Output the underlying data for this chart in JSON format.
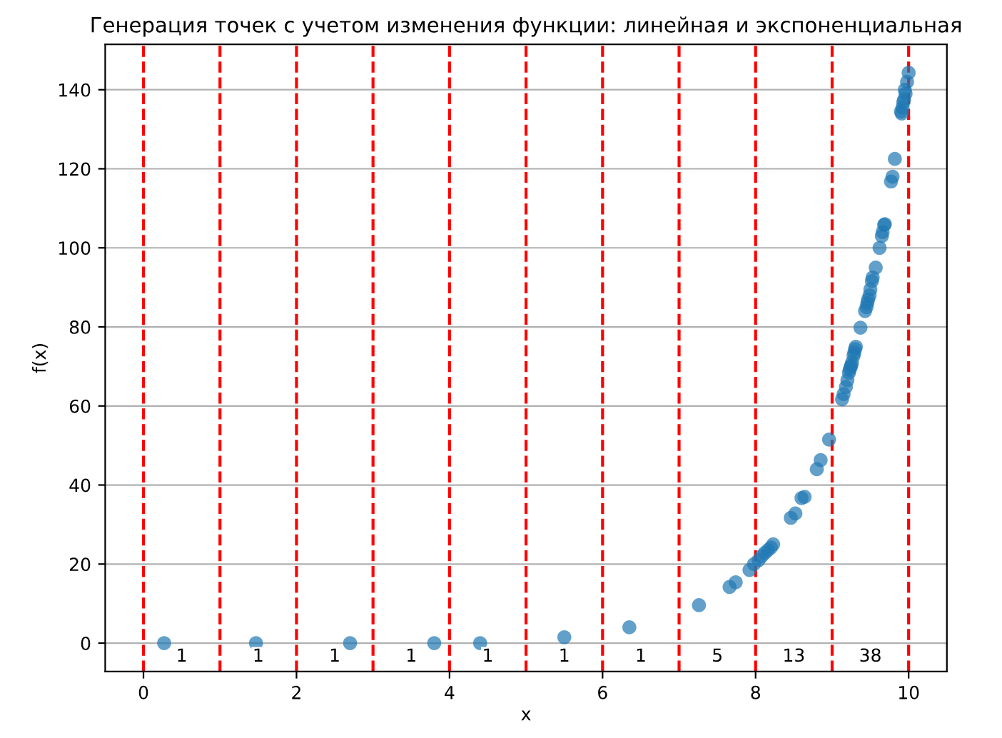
{
  "chart_data": {
    "type": "scatter",
    "title": "Генерация точек с учетом изменения функции: линейная и экспоненциальная",
    "xlabel": "x",
    "ylabel": "f(x)",
    "series": [
      {
        "color": "#1f77b4",
        "x": [
          0.27,
          1.47,
          2.7,
          3.8,
          4.4,
          5.5,
          6.35,
          7.26,
          7.66,
          7.74,
          7.92,
          7.98,
          8.04,
          8.08,
          8.12,
          8.16,
          8.2,
          8.23,
          8.46,
          8.52,
          8.6,
          8.64,
          8.8,
          8.85,
          8.96,
          9.13,
          9.15,
          9.18,
          9.2,
          9.22,
          9.23,
          9.25,
          9.26,
          9.28,
          9.29,
          9.3,
          9.37,
          9.43,
          9.45,
          9.46,
          9.47,
          9.49,
          9.52,
          9.53,
          9.57,
          9.62,
          9.65,
          9.66,
          9.68,
          9.69,
          9.77,
          9.79,
          9.82,
          9.9,
          9.91,
          9.92,
          9.93,
          9.95,
          9.96,
          9.98,
          10.0,
          9.94,
          9.5,
          9.24,
          9.31
        ],
        "values": [
          0,
          0,
          0,
          0,
          0,
          1.5,
          4,
          9.6,
          14.2,
          15.4,
          18.5,
          20,
          21,
          22,
          22.8,
          23.5,
          24.2,
          25,
          31.7,
          32.8,
          36.7,
          37,
          44,
          46.3,
          51.5,
          61.7,
          63,
          64.8,
          66.5,
          68.4,
          69.2,
          70.2,
          71,
          72.7,
          73.5,
          74.4,
          79.8,
          84,
          85,
          86,
          86.9,
          88,
          91.6,
          92.5,
          95,
          100,
          103,
          104,
          105.8,
          106,
          116.8,
          118,
          122.5,
          134.5,
          134,
          135.5,
          136.8,
          140,
          139,
          142,
          144.3,
          137.5,
          89.5,
          69.8,
          75
        ]
      }
    ],
    "xlim": [
      -0.5,
      10.5
    ],
    "xticks": [
      0,
      2,
      4,
      6,
      8,
      10
    ],
    "ylim": [
      -7.2,
      151.5
    ],
    "yticks": [
      0,
      20,
      40,
      60,
      80,
      100,
      120,
      140
    ],
    "grid": "y",
    "marker": "circle",
    "ref_lines": [
      {
        "axis": "x",
        "value": 0,
        "color": "#ff0000",
        "line_style": "dashed"
      },
      {
        "axis": "x",
        "value": 1,
        "color": "#ff0000",
        "line_style": "dashed"
      },
      {
        "axis": "x",
        "value": 2,
        "color": "#ff0000",
        "line_style": "dashed"
      },
      {
        "axis": "x",
        "value": 3,
        "color": "#ff0000",
        "line_style": "dashed"
      },
      {
        "axis": "x",
        "value": 4,
        "color": "#ff0000",
        "line_style": "dashed"
      },
      {
        "axis": "x",
        "value": 5,
        "color": "#ff0000",
        "line_style": "dashed"
      },
      {
        "axis": "x",
        "value": 6,
        "color": "#ff0000",
        "line_style": "dashed"
      },
      {
        "axis": "x",
        "value": 7,
        "color": "#ff0000",
        "line_style": "dashed"
      },
      {
        "axis": "x",
        "value": 8,
        "color": "#ff0000",
        "line_style": "dashed"
      },
      {
        "axis": "x",
        "value": 9,
        "color": "#ff0000",
        "line_style": "dashed"
      },
      {
        "axis": "x",
        "value": 10,
        "color": "#ff0000",
        "line_style": "dashed"
      }
    ],
    "annotations": [
      "1",
      "1",
      "1",
      "1",
      "1",
      "1",
      "1",
      "5",
      "13",
      "38"
    ]
  }
}
